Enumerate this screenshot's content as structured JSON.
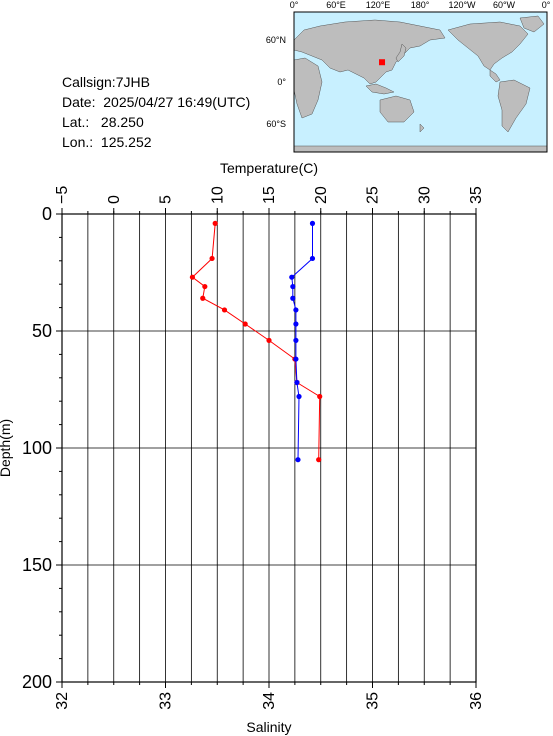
{
  "info": {
    "callsign": "Callsign:7JHB",
    "date": "Date:  2025/04/27 16:49(UTC)",
    "lat": "Lat.:   28.250",
    "lon": "Lon.:  125.252"
  },
  "map": {
    "lon_labels": [
      "0°",
      "60°E",
      "120°E",
      "180°",
      "120°W",
      "60°W",
      "0°"
    ],
    "lat_labels": [
      "60°N",
      "0°",
      "60°S"
    ],
    "ocean_color": "#c8f0ff",
    "land_color": "#bdbdbd",
    "marker_color": "#ff0000",
    "marker": {
      "lat": 28.25,
      "lon": 125.252
    }
  },
  "chart_data": {
    "type": "line",
    "top_axis_label": "Temperature(C)",
    "bottom_axis_label": "Salinity",
    "ylabel": "Depth(m)",
    "temperature_ticks": [
      "−5",
      "0",
      "5",
      "10",
      "15",
      "20",
      "25",
      "30",
      "35"
    ],
    "salinity_ticks": [
      "32",
      "33",
      "34",
      "35",
      "36"
    ],
    "depth_ticks": [
      "0",
      "50",
      "100",
      "150",
      "200"
    ],
    "temperature_range": [
      -5,
      35
    ],
    "salinity_range": [
      32,
      36
    ],
    "depth_range": [
      0,
      200
    ],
    "grid": true,
    "series": [
      {
        "measure": "temperature",
        "color": "#ff0000",
        "points": [
          {
            "x": 9.8,
            "depth": 4
          },
          {
            "x": 9.5,
            "depth": 19
          },
          {
            "x": 7.6,
            "depth": 27
          },
          {
            "x": 8.8,
            "depth": 31
          },
          {
            "x": 8.6,
            "depth": 36
          },
          {
            "x": 10.7,
            "depth": 41
          },
          {
            "x": 12.7,
            "depth": 47
          },
          {
            "x": 15.0,
            "depth": 54
          },
          {
            "x": 17.5,
            "depth": 62
          },
          {
            "x": 17.7,
            "depth": 72
          },
          {
            "x": 19.9,
            "depth": 78
          },
          {
            "x": 19.8,
            "depth": 105
          }
        ]
      },
      {
        "measure": "salinity",
        "color": "#0000ff",
        "points": [
          {
            "x": 34.42,
            "depth": 4
          },
          {
            "x": 34.42,
            "depth": 19
          },
          {
            "x": 34.22,
            "depth": 27
          },
          {
            "x": 34.23,
            "depth": 31
          },
          {
            "x": 34.23,
            "depth": 36
          },
          {
            "x": 34.26,
            "depth": 41
          },
          {
            "x": 34.26,
            "depth": 47
          },
          {
            "x": 34.26,
            "depth": 54
          },
          {
            "x": 34.26,
            "depth": 62
          },
          {
            "x": 34.27,
            "depth": 72
          },
          {
            "x": 34.29,
            "depth": 78
          },
          {
            "x": 34.28,
            "depth": 105
          }
        ]
      }
    ]
  }
}
